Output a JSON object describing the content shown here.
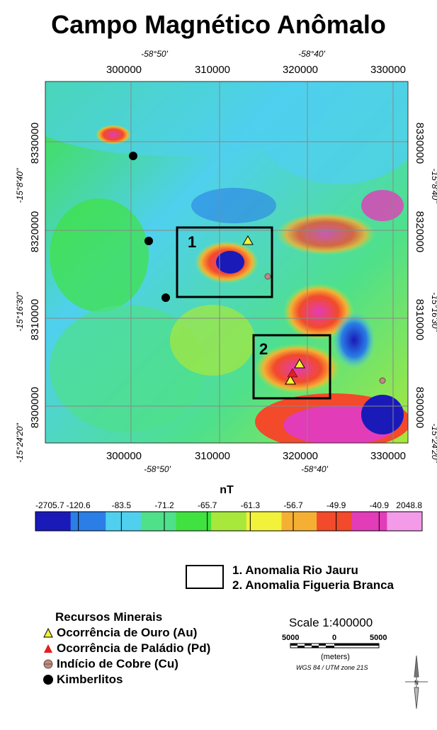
{
  "title": "Campo Magnético Anômalo",
  "map": {
    "top_lon_labels": [
      "-58°50'",
      "-58°40'"
    ],
    "bottom_lon_labels": [
      "-58°50'",
      "-58°40'"
    ],
    "x_ticks": [
      "300000",
      "310000",
      "320000",
      "330000"
    ],
    "y_ticks": [
      "8330000",
      "8320000",
      "8310000",
      "8300000"
    ],
    "lat_labels": [
      "-15°8'40\"",
      "-15°16'30\"",
      "-15°24'20\""
    ],
    "anomaly_boxes": [
      "1",
      "2"
    ]
  },
  "colorbar": {
    "unit": "nT",
    "labels": [
      "-2705.7",
      "-120.6",
      "-83.5",
      "-71.2",
      "-65.7",
      "-61.3",
      "-56.7",
      "-49.9",
      "-40.9",
      "2048.8"
    ],
    "colors": [
      "#1a1ab8",
      "#2a7ee6",
      "#4fd0ee",
      "#4fe08a",
      "#3fe23f",
      "#a8e83a",
      "#f2f23a",
      "#f5b034",
      "#f24a2a",
      "#e23cb8",
      "#f39ae8"
    ]
  },
  "legend": {
    "anomalies": [
      "1. Anomalia Rio Jauru",
      "2. Anomalia Figueria Branca"
    ],
    "minerals_title": "Recursos Minerais",
    "minerals": [
      {
        "label": "Ocorrência de Ouro (Au)",
        "symbol": "yellow-triangle"
      },
      {
        "label": "Ocorrência de Paládio (Pd)",
        "symbol": "red-triangle"
      },
      {
        "label": "Indício de Cobre (Cu)",
        "symbol": "brown-circle"
      },
      {
        "label": "Kimberlitos",
        "symbol": "black-circle"
      }
    ]
  },
  "scale": {
    "title": "Scale 1:400000",
    "numbers": [
      "5000",
      "0",
      "5000"
    ],
    "units": "(meters)",
    "projection": "WGS 84 / UTM zone 21S"
  },
  "north_arrow": "N"
}
